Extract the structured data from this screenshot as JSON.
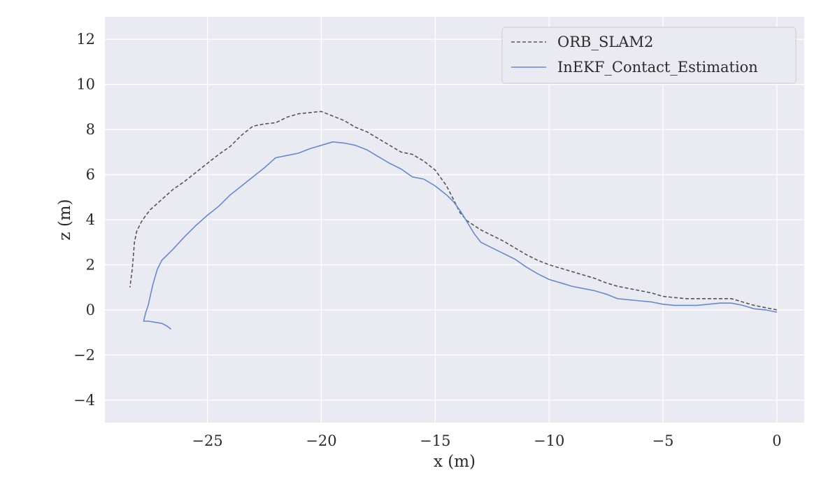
{
  "chart_data": {
    "type": "line",
    "xlabel": "x (m)",
    "ylabel": "z (m)",
    "xlim": [
      -29.5,
      1.2
    ],
    "ylim": [
      -5.0,
      13.0
    ],
    "xticks": [
      -25,
      -20,
      -15,
      -10,
      -5,
      0
    ],
    "yticks": [
      -4,
      -2,
      0,
      2,
      4,
      6,
      8,
      10,
      12
    ],
    "xtick_labels": [
      "−25",
      "−20",
      "−15",
      "−10",
      "−5",
      "0"
    ],
    "ytick_labels": [
      "−4",
      "−2",
      "0",
      "2",
      "4",
      "6",
      "8",
      "10",
      "12"
    ],
    "grid": true,
    "legend_position": "top-right",
    "series": [
      {
        "name": "ORB_SLAM2",
        "color": "#555555",
        "style": "dashed",
        "x": [
          0.0,
          -0.5,
          -1.0,
          -1.5,
          -2.0,
          -2.5,
          -3.0,
          -3.5,
          -4.0,
          -4.5,
          -5.0,
          -5.5,
          -6.0,
          -6.5,
          -7.0,
          -7.5,
          -8.0,
          -8.5,
          -9.0,
          -9.5,
          -10.0,
          -10.5,
          -11.0,
          -11.5,
          -12.0,
          -12.5,
          -13.0,
          -13.3,
          -13.6,
          -13.9,
          -14.2,
          -14.5,
          -15.0,
          -15.5,
          -16.0,
          -16.5,
          -17.0,
          -17.5,
          -18.0,
          -18.5,
          -19.0,
          -19.5,
          -20.0,
          -20.5,
          -21.0,
          -21.5,
          -22.0,
          -22.5,
          -23.0,
          -23.5,
          -24.0,
          -24.5,
          -25.0,
          -25.5,
          -26.0,
          -26.5,
          -27.0,
          -27.5,
          -27.7,
          -27.9,
          -28.0,
          -28.1,
          -28.2,
          -28.3,
          -28.4
        ],
        "y": [
          0.0,
          0.1,
          0.2,
          0.35,
          0.5,
          0.5,
          0.5,
          0.5,
          0.5,
          0.55,
          0.6,
          0.75,
          0.85,
          0.95,
          1.05,
          1.2,
          1.4,
          1.55,
          1.7,
          1.85,
          2.0,
          2.2,
          2.45,
          2.75,
          3.05,
          3.3,
          3.55,
          3.75,
          3.95,
          4.3,
          4.9,
          5.5,
          6.2,
          6.6,
          6.9,
          7.0,
          7.3,
          7.6,
          7.9,
          8.1,
          8.4,
          8.6,
          8.8,
          8.75,
          8.7,
          8.55,
          8.3,
          8.25,
          8.15,
          7.75,
          7.25,
          6.9,
          6.5,
          6.1,
          5.7,
          5.35,
          4.9,
          4.45,
          4.2,
          3.9,
          3.7,
          3.5,
          3.0,
          1.8,
          1.0
        ]
      },
      {
        "name": "InEKF_Contact_Estimation",
        "color": "#6a89c8",
        "style": "solid",
        "x": [
          0.0,
          -0.5,
          -1.0,
          -1.5,
          -2.0,
          -2.5,
          -3.0,
          -3.5,
          -4.0,
          -4.5,
          -5.0,
          -5.5,
          -6.0,
          -6.5,
          -7.0,
          -7.5,
          -8.0,
          -8.5,
          -9.0,
          -9.5,
          -10.0,
          -10.5,
          -11.0,
          -11.5,
          -12.0,
          -12.5,
          -13.0,
          -13.3,
          -13.6,
          -13.9,
          -14.2,
          -14.5,
          -15.0,
          -15.5,
          -16.0,
          -16.5,
          -17.0,
          -17.5,
          -18.0,
          -18.5,
          -19.0,
          -19.5,
          -20.0,
          -20.5,
          -21.0,
          -21.5,
          -22.0,
          -22.5,
          -23.0,
          -23.5,
          -24.0,
          -24.5,
          -25.0,
          -25.5,
          -26.0,
          -26.5,
          -27.0,
          -27.2,
          -27.4,
          -27.5,
          -27.6,
          -27.7,
          -27.8,
          -27.6,
          -27.3,
          -27.0,
          -26.8,
          -26.6
        ],
        "y": [
          -0.1,
          0.0,
          0.05,
          0.2,
          0.3,
          0.3,
          0.25,
          0.2,
          0.2,
          0.2,
          0.25,
          0.35,
          0.4,
          0.45,
          0.5,
          0.7,
          0.85,
          0.95,
          1.05,
          1.2,
          1.35,
          1.6,
          1.9,
          2.25,
          2.5,
          2.75,
          3.0,
          3.4,
          3.9,
          4.4,
          4.8,
          5.1,
          5.5,
          5.8,
          5.9,
          6.25,
          6.5,
          6.8,
          7.1,
          7.3,
          7.4,
          7.45,
          7.3,
          7.15,
          6.95,
          6.85,
          6.75,
          6.3,
          5.9,
          5.5,
          5.1,
          4.6,
          4.2,
          3.75,
          3.25,
          2.7,
          2.2,
          1.8,
          1.1,
          0.65,
          0.2,
          -0.1,
          -0.5,
          -0.5,
          -0.55,
          -0.6,
          -0.7,
          -0.85
        ]
      }
    ]
  }
}
